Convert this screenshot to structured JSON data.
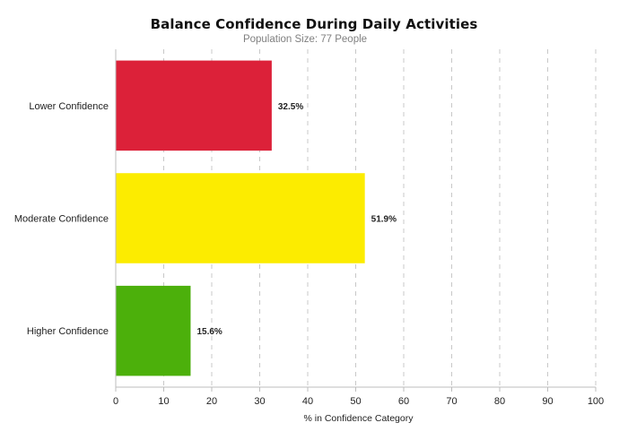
{
  "chart_data": {
    "type": "bar",
    "orientation": "horizontal",
    "title": "Balance Confidence During Daily Activities",
    "subtitle": "Population Size: 77 People",
    "categories": [
      "Lower Confidence",
      "Moderate Confidence",
      "Higher Confidence"
    ],
    "values": [
      32.5,
      51.9,
      15.6
    ],
    "value_labels": [
      "32.5%",
      "51.9%",
      "15.6%"
    ],
    "colors": [
      "#dc2139",
      "#fcec00",
      "#4cb00b"
    ],
    "xlabel": "% in Confidence Category",
    "ylabel": "",
    "xlim": [
      0,
      100
    ],
    "xticks": [
      0,
      10,
      20,
      30,
      40,
      50,
      60,
      70,
      80,
      90,
      100
    ],
    "grid": "vertical dashed",
    "legend": "none"
  }
}
